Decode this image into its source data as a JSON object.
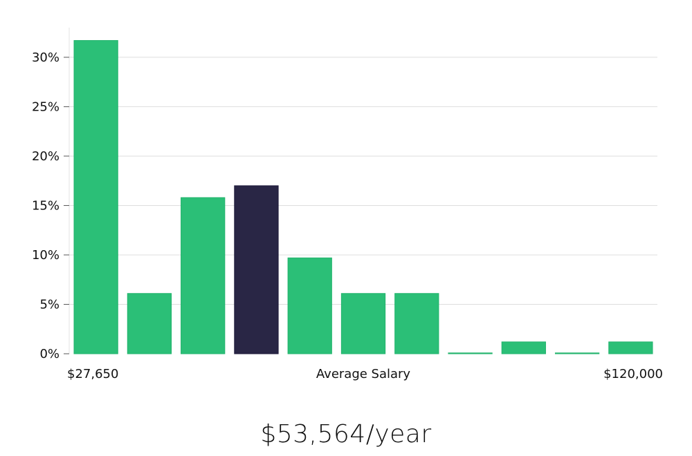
{
  "chart_data": {
    "type": "bar",
    "xlabel": "Average Salary",
    "x_min_label": "$27,650",
    "x_max_label": "$120,000",
    "y_unit": "%",
    "ylim": [
      0,
      33
    ],
    "yticks": [
      0,
      5,
      10,
      15,
      20,
      25,
      30
    ],
    "grid": true,
    "values": [
      31.7,
      6.1,
      15.8,
      17.0,
      9.7,
      6.1,
      6.1,
      0,
      1.2,
      0,
      1.2
    ],
    "highlight_index": 3,
    "colors": {
      "bar": "#2bbf77",
      "highlight": "#292645",
      "grid": "#dddddd"
    }
  },
  "salary_summary": "$53,564/year"
}
